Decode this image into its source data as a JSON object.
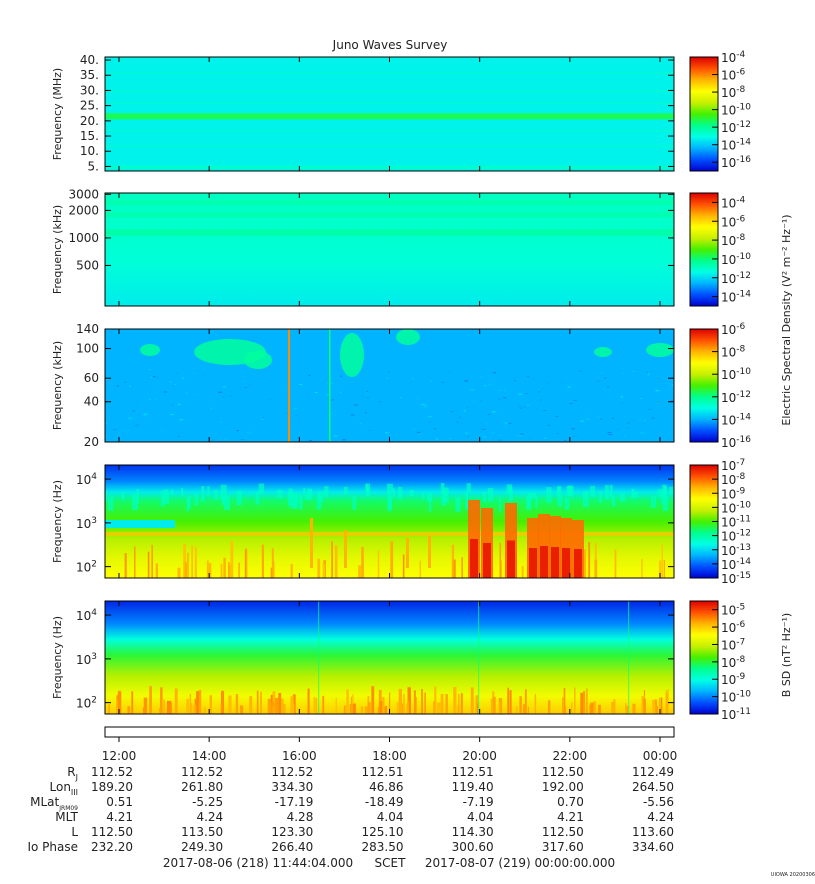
{
  "title": "Juno Waves Survey",
  "colors": {
    "frame": "#000000",
    "text": "#222222",
    "spectrum": [
      "#0000d0",
      "#0050ff",
      "#00b4ff",
      "#00ffe6",
      "#00ff8c",
      "#46f000",
      "#c8f000",
      "#ffff00",
      "#ffb400",
      "#ff5000",
      "#dd0000"
    ]
  },
  "chart_data": [
    {
      "type": "heatmap",
      "ylabel": "Frequency (MHz)",
      "y_scale": "linear",
      "ylim": [
        3.5,
        41
      ],
      "yticks": [
        {
          "v": 40,
          "label": "40."
        },
        {
          "v": 35,
          "label": "35."
        },
        {
          "v": 30,
          "label": "30."
        },
        {
          "v": 25,
          "label": "25."
        },
        {
          "v": 20,
          "label": "20."
        },
        {
          "v": 15,
          "label": "15."
        },
        {
          "v": 10,
          "label": "10."
        },
        {
          "v": 5,
          "label": "5."
        }
      ],
      "colorbar": {
        "scale": "log",
        "clim": [
          -17,
          -4
        ],
        "ticks": [
          {
            "e": -4,
            "label": "-4"
          },
          {
            "e": -6,
            "label": "-6"
          },
          {
            "e": -8,
            "label": "-8"
          },
          {
            "e": -10,
            "label": "-10"
          },
          {
            "e": -12,
            "label": "-12"
          },
          {
            "e": -14,
            "label": "-14"
          },
          {
            "e": -16,
            "label": "-16"
          }
        ]
      },
      "background_level_exp": -13.3,
      "bands": [
        {
          "y0": 20.5,
          "y1": 22.5,
          "level_exp": -11.3
        }
      ]
    },
    {
      "type": "heatmap",
      "ylabel": "Frequency (kHz)",
      "y_scale": "log",
      "ylim": [
        180,
        3100
      ],
      "yticks": [
        {
          "v": 3000,
          "label": "3000"
        },
        {
          "v": 2000,
          "label": "2000"
        },
        {
          "v": 1000,
          "label": "1000"
        },
        {
          "v": 500,
          "label": "500"
        }
      ],
      "colorbar": {
        "scale": "log",
        "clim": [
          -15,
          -3
        ],
        "ticks": [
          {
            "e": -4,
            "label": "-4"
          },
          {
            "e": -6,
            "label": "-6"
          },
          {
            "e": -8,
            "label": "-8"
          },
          {
            "e": -10,
            "label": "-10"
          },
          {
            "e": -12,
            "label": "-12"
          },
          {
            "e": -14,
            "label": "-14"
          }
        ]
      },
      "colorbar_label": "Electric Spectral Density (V² m⁻² Hz⁻¹)",
      "background_level_exp": -11.2,
      "bands": [
        {
          "y0": 2300,
          "y1": 2600,
          "level_exp": -10.6
        },
        {
          "y0": 1700,
          "y1": 1900,
          "level_exp": -10.6
        },
        {
          "y0": 1050,
          "y1": 1250,
          "level_exp": -10.5
        }
      ]
    },
    {
      "type": "heatmap",
      "ylabel": "Frequency (kHz)",
      "y_scale": "log",
      "ylim": [
        20,
        140
      ],
      "yticks": [
        {
          "v": 140,
          "label": "140"
        },
        {
          "v": 100,
          "label": "100"
        },
        {
          "v": 60,
          "label": "60"
        },
        {
          "v": 40,
          "label": "40"
        },
        {
          "v": 20,
          "label": "20"
        }
      ],
      "colorbar": {
        "scale": "log",
        "clim": [
          -16,
          -6
        ],
        "ticks": [
          {
            "e": -6,
            "label": "-6"
          },
          {
            "e": -8,
            "label": "-8"
          },
          {
            "e": -10,
            "label": "-10"
          },
          {
            "e": -12,
            "label": "-12"
          },
          {
            "e": -14,
            "label": "-14"
          },
          {
            "e": -16,
            "label": "-16"
          }
        ]
      },
      "background_level_exp": -14.0
    },
    {
      "type": "heatmap",
      "ylabel": "Frequency (Hz)",
      "y_scale": "log",
      "ylim": [
        55,
        21000
      ],
      "yticks": [
        {
          "v": 10000,
          "base": "10",
          "exp": "4"
        },
        {
          "v": 1000,
          "base": "10",
          "exp": "3"
        },
        {
          "v": 100,
          "base": "10",
          "exp": "2"
        }
      ],
      "colorbar": {
        "scale": "log",
        "clim": [
          -15,
          -7
        ],
        "ticks": [
          {
            "e": -7,
            "label": "-7"
          },
          {
            "e": -8,
            "label": "-8"
          },
          {
            "e": -9,
            "label": "-9"
          },
          {
            "e": -10,
            "label": "-10"
          },
          {
            "e": -11,
            "label": "-11"
          },
          {
            "e": -12,
            "label": "-12"
          },
          {
            "e": -13,
            "label": "-13"
          },
          {
            "e": -14,
            "label": "-14"
          },
          {
            "e": -15,
            "label": "-15"
          }
        ]
      }
    },
    {
      "type": "heatmap",
      "ylabel": "Frequency (Hz)",
      "y_scale": "log",
      "ylim": [
        55,
        21000
      ],
      "yticks": [
        {
          "v": 10000,
          "base": "10",
          "exp": "4"
        },
        {
          "v": 1000,
          "base": "10",
          "exp": "3"
        },
        {
          "v": 100,
          "base": "10",
          "exp": "2"
        }
      ],
      "colorbar": {
        "scale": "log",
        "clim": [
          -11,
          -4.5
        ],
        "ticks": [
          {
            "e": -5,
            "label": "-5"
          },
          {
            "e": -6,
            "label": "-6"
          },
          {
            "e": -7,
            "label": "-7"
          },
          {
            "e": -8,
            "label": "-8"
          },
          {
            "e": -9,
            "label": "-9"
          },
          {
            "e": -10,
            "label": "-10"
          },
          {
            "e": -11,
            "label": "-11"
          }
        ]
      },
      "colorbar_label": "B SD (nT² Hz⁻¹)"
    }
  ],
  "time_axis": {
    "tick_labels": [
      "12:00",
      "14:00",
      "16:00",
      "18:00",
      "20:00",
      "22:00",
      "00:00"
    ],
    "ephemeris": [
      {
        "label": "R",
        "sub": "J",
        "values": [
          "112.52",
          "112.52",
          "112.52",
          "112.51",
          "112.51",
          "112.50",
          "112.49"
        ]
      },
      {
        "label": "Lon",
        "sub": "III",
        "values": [
          "189.20",
          "261.80",
          "334.30",
          "46.86",
          "119.40",
          "192.00",
          "264.50"
        ]
      },
      {
        "label": "MLat",
        "sub": "JRM09",
        "values": [
          "0.51",
          "-5.25",
          "-17.19",
          "-18.49",
          "-7.19",
          "0.70",
          "-5.56"
        ]
      },
      {
        "label": "MLT",
        "sub": "",
        "values": [
          "4.21",
          "4.24",
          "4.28",
          "4.04",
          "4.04",
          "4.21",
          "4.24"
        ]
      },
      {
        "label": "L",
        "sub": "",
        "values": [
          "112.50",
          "113.50",
          "123.30",
          "125.10",
          "114.30",
          "112.50",
          "113.60"
        ]
      },
      {
        "label": "Io Phase",
        "sub": "",
        "values": [
          "232.20",
          "249.30",
          "266.40",
          "283.50",
          "300.60",
          "317.60",
          "334.60"
        ]
      }
    ],
    "footer": {
      "start": "2017-08-06 (218) 11:44:04.000",
      "scet": "SCET",
      "end": "2017-08-07 (219) 00:00:00.000"
    }
  },
  "credit": "UIOWA 20200306"
}
